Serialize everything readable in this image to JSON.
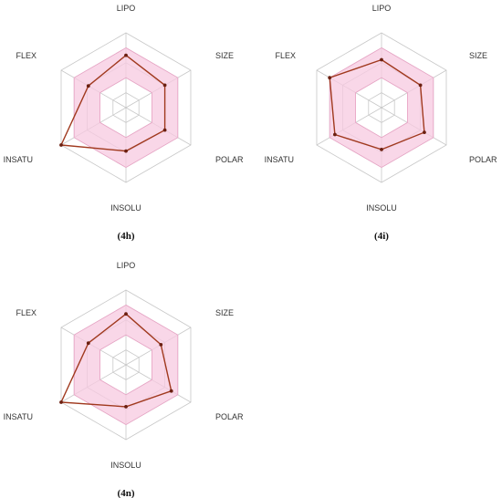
{
  "colors": {
    "grid": "#c8c8c8",
    "band_fill": "#f7c9e0",
    "band_stroke": "#e9a3c5",
    "series": "#a0391e",
    "point": "#6b1f10"
  },
  "chart_data": [
    {
      "type": "radar",
      "caption_pre": "(",
      "caption_id": "4h",
      "caption_post": ")",
      "axes": [
        "LIPO",
        "SIZE",
        "POLAR",
        "INSOLU",
        "INSATU",
        "FLEX"
      ],
      "rings": 5,
      "range": [
        0,
        5
      ],
      "band": {
        "lower": [
          2,
          2,
          2,
          2,
          2,
          2
        ],
        "upper": [
          4,
          4,
          4,
          4,
          4,
          4
        ]
      },
      "series": [
        {
          "values": [
            3.5,
            3.0,
            3.0,
            2.9,
            5.0,
            2.9
          ]
        }
      ]
    },
    {
      "type": "radar",
      "caption_pre": "(",
      "caption_id": "4i",
      "caption_post": ")",
      "axes": [
        "LIPO",
        "SIZE",
        "POLAR",
        "INSOLU",
        "INSATU",
        "FLEX"
      ],
      "rings": 5,
      "range": [
        0,
        5
      ],
      "band": {
        "lower": [
          2,
          2,
          2,
          2,
          2,
          2
        ],
        "upper": [
          4,
          4,
          4,
          4,
          4,
          4
        ]
      },
      "series": [
        {
          "values": [
            3.2,
            3.0,
            3.3,
            2.8,
            3.6,
            4.0
          ]
        }
      ]
    },
    {
      "type": "radar",
      "caption_pre": "(",
      "caption_id": "4n",
      "caption_post": ")",
      "axes": [
        "LIPO",
        "SIZE",
        "POLAR",
        "INSOLU",
        "INSATU",
        "FLEX"
      ],
      "rings": 5,
      "range": [
        0,
        5
      ],
      "band": {
        "lower": [
          2,
          2,
          2,
          2,
          2,
          2
        ],
        "upper": [
          4,
          4,
          4,
          4,
          4,
          4
        ]
      },
      "series": [
        {
          "values": [
            3.4,
            2.7,
            3.5,
            2.8,
            5.0,
            2.9
          ]
        }
      ]
    }
  ]
}
